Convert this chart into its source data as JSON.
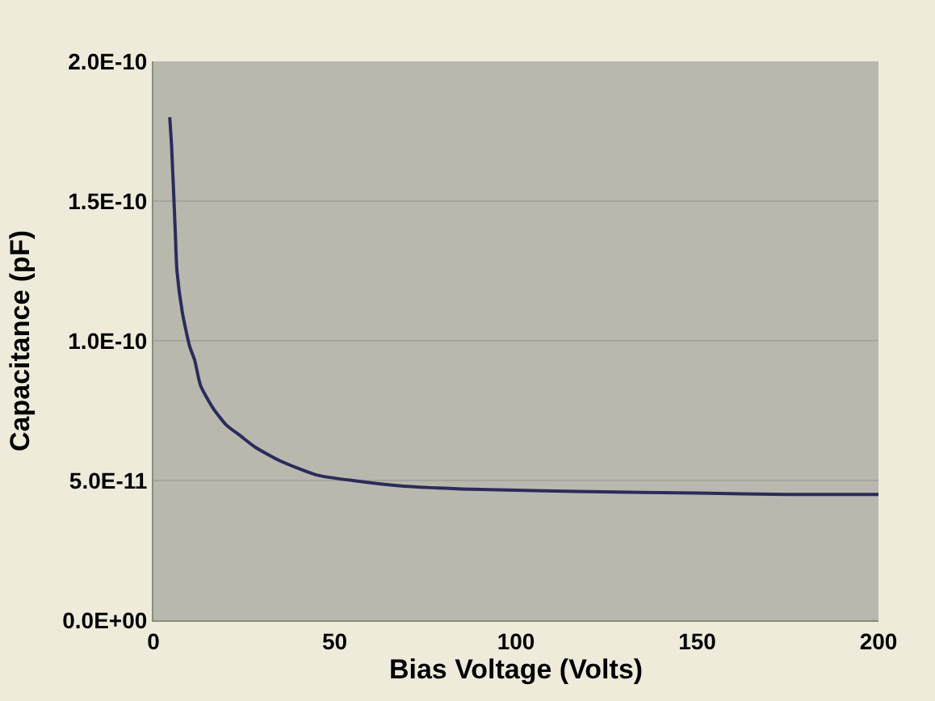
{
  "chart_data": {
    "type": "line",
    "xlabel": "Bias Voltage (Volts)",
    "ylabel": "Capacitance (pF)",
    "x": [
      4.5,
      5,
      6,
      6.5,
      8,
      10,
      11.4,
      13,
      16.4,
      20,
      24,
      28,
      35,
      45,
      55,
      69,
      85,
      100,
      120,
      150,
      175,
      200
    ],
    "series": [
      {
        "color": "#2b2b5e",
        "values": [
          1.8e-10,
          1.7e-10,
          1.4e-10,
          1.25e-10,
          1.1e-10,
          9.8e-11,
          9.3e-11,
          8.4e-11,
          7.6e-11,
          7e-11,
          6.6e-11,
          6.2e-11,
          5.7e-11,
          5.2e-11,
          5e-11,
          4.8e-11,
          4.7e-11,
          4.65e-11,
          4.6e-11,
          4.55e-11,
          4.5e-11,
          4.5e-11
        ]
      }
    ],
    "xlim": [
      0,
      200
    ],
    "xticks": [
      0,
      50,
      100,
      150,
      200
    ],
    "ylim": [
      0,
      2e-10
    ],
    "yticks": [
      {
        "value": 0,
        "label": "0.0E+00"
      },
      {
        "value": 5e-11,
        "label": "5.0E-11"
      },
      {
        "value": 1e-10,
        "label": "1.0E-10"
      },
      {
        "value": 1.5e-10,
        "label": "1.5E-10"
      },
      {
        "value": 2e-10,
        "label": "2.0E-10"
      }
    ],
    "grid": "y",
    "marker": "none",
    "line_style": "solid",
    "legend": false
  }
}
